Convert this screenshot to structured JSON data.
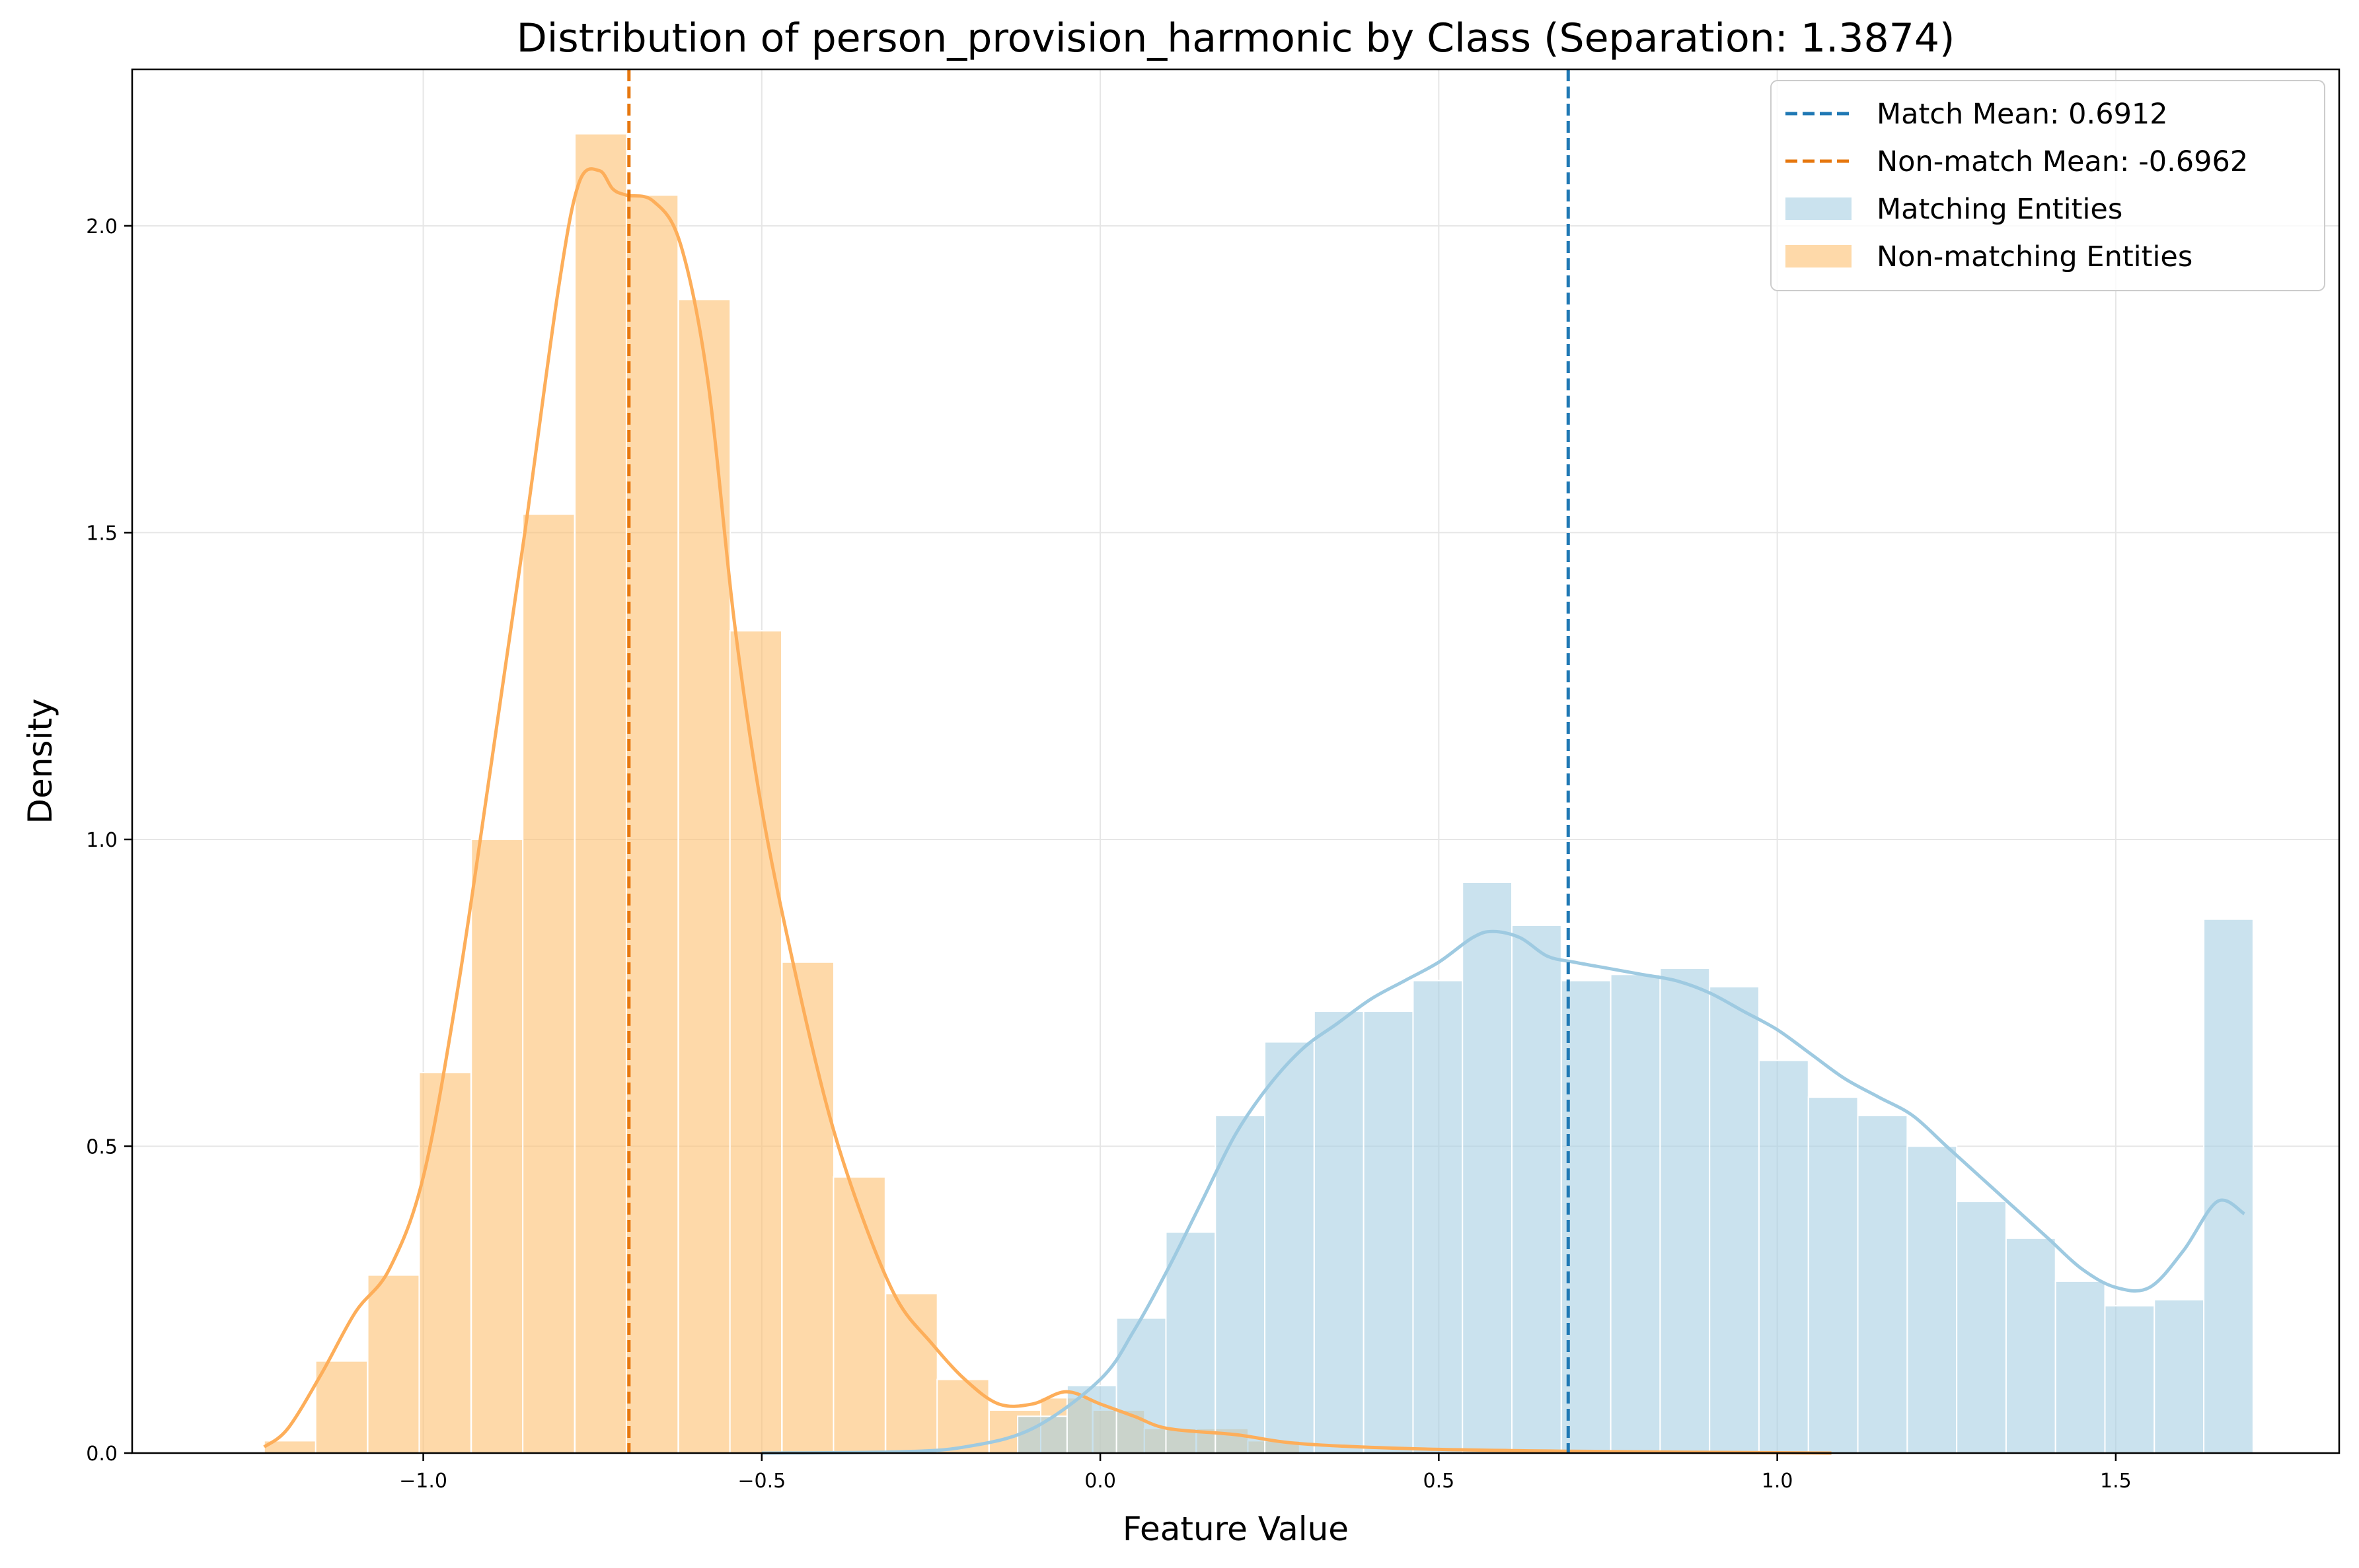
{
  "chart_data": {
    "type": "histogram",
    "title": "Distribution of person_provision_harmonic by Class (Separation: 1.3874)",
    "xlabel": "Feature Value",
    "ylabel": "Density",
    "xlim": [
      -1.43,
      1.83
    ],
    "ylim": [
      0,
      2.255
    ],
    "xticks": [
      -1.0,
      -0.5,
      0.0,
      0.5,
      1.0,
      1.5
    ],
    "xtick_labels": [
      "−1.0",
      "−0.5",
      "0.0",
      "0.5",
      "1.0",
      "1.5"
    ],
    "yticks": [
      0.0,
      0.5,
      1.0,
      1.5,
      2.0
    ],
    "ytick_labels": [
      "0.0",
      "0.5",
      "1.0",
      "1.5",
      "2.0"
    ],
    "grid": true,
    "legend_position": "top-right",
    "colors": {
      "match_bar": "#a6cee3",
      "nonmatch_bar": "#fdbf6f",
      "match_kde": "#9ecae1",
      "nonmatch_kde": "#fdae5a",
      "match_mean": "#1f78b4",
      "nonmatch_mean": "#e6770e"
    },
    "legend": [
      {
        "label": "Match Mean: 0.6912",
        "kind": "line",
        "color": "#1f78b4"
      },
      {
        "label": "Non-match Mean: -0.6962",
        "kind": "line",
        "color": "#e6770e"
      },
      {
        "label": "Matching Entities",
        "kind": "patch",
        "color": "#a6cee3"
      },
      {
        "label": "Non-matching Entities",
        "kind": "patch",
        "color": "#fdbf6f"
      }
    ],
    "mean_lines": [
      {
        "name": "Match Mean",
        "x": 0.6912,
        "color": "#1f78b4"
      },
      {
        "name": "Non-match Mean",
        "x": -0.6962,
        "color": "#e6770e"
      }
    ],
    "series": [
      {
        "name": "Non-matching Entities",
        "bin_width": 0.0765,
        "bins_left": [
          -1.235,
          -1.159,
          -1.082,
          -1.006,
          -0.929,
          -0.853,
          -0.776,
          -0.7,
          -0.623,
          -0.547,
          -0.47,
          -0.394,
          -0.317,
          -0.241,
          -0.164,
          -0.088,
          -0.011,
          0.065,
          0.142,
          0.218
        ],
        "values": [
          0.02,
          0.15,
          0.29,
          0.62,
          1.0,
          1.53,
          2.15,
          2.05,
          1.88,
          1.34,
          0.8,
          0.45,
          0.26,
          0.12,
          0.07,
          0.09,
          0.07,
          0.04,
          0.04,
          0.02
        ],
        "kde_x": [
          -1.235,
          -1.2,
          -1.15,
          -1.1,
          -1.05,
          -1.0,
          -0.95,
          -0.9,
          -0.85,
          -0.8,
          -0.77,
          -0.74,
          -0.72,
          -0.7,
          -0.66,
          -0.62,
          -0.58,
          -0.54,
          -0.5,
          -0.45,
          -0.4,
          -0.35,
          -0.3,
          -0.25,
          -0.2,
          -0.15,
          -0.1,
          -0.05,
          0.0,
          0.05,
          0.1,
          0.2,
          0.3,
          0.5,
          0.8,
          1.08
        ],
        "kde_y": [
          0.01,
          0.04,
          0.13,
          0.23,
          0.3,
          0.45,
          0.75,
          1.12,
          1.5,
          1.9,
          2.07,
          2.09,
          2.06,
          2.05,
          2.04,
          1.97,
          1.75,
          1.35,
          1.05,
          0.78,
          0.55,
          0.38,
          0.25,
          0.18,
          0.12,
          0.08,
          0.08,
          0.1,
          0.08,
          0.06,
          0.04,
          0.03,
          0.015,
          0.006,
          0.002,
          0.0
        ]
      },
      {
        "name": "Matching Entities",
        "bin_width": 0.073,
        "bins_left": [
          -0.122,
          -0.049,
          0.024,
          0.097,
          0.17,
          0.243,
          0.316,
          0.389,
          0.462,
          0.535,
          0.608,
          0.681,
          0.754,
          0.827,
          0.9,
          0.973,
          1.046,
          1.119,
          1.192,
          1.265,
          1.338,
          1.411,
          1.484,
          1.557,
          1.63
        ],
        "values": [
          0.06,
          0.11,
          0.22,
          0.36,
          0.55,
          0.67,
          0.72,
          0.72,
          0.77,
          0.93,
          0.86,
          0.77,
          0.78,
          0.79,
          0.76,
          0.64,
          0.58,
          0.55,
          0.5,
          0.41,
          0.35,
          0.28,
          0.24,
          0.25,
          0.87
        ],
        "kde_x": [
          -0.5,
          -0.3,
          -0.2,
          -0.1,
          0.0,
          0.05,
          0.1,
          0.15,
          0.2,
          0.25,
          0.3,
          0.35,
          0.4,
          0.45,
          0.5,
          0.55,
          0.58,
          0.62,
          0.66,
          0.7,
          0.75,
          0.8,
          0.85,
          0.9,
          0.95,
          1.0,
          1.05,
          1.1,
          1.15,
          1.2,
          1.25,
          1.3,
          1.35,
          1.4,
          1.45,
          1.5,
          1.55,
          1.6,
          1.65,
          1.69
        ],
        "kde_y": [
          0.0,
          0.002,
          0.01,
          0.04,
          0.12,
          0.2,
          0.3,
          0.41,
          0.52,
          0.6,
          0.66,
          0.7,
          0.74,
          0.77,
          0.8,
          0.84,
          0.85,
          0.84,
          0.81,
          0.8,
          0.79,
          0.78,
          0.77,
          0.75,
          0.72,
          0.69,
          0.65,
          0.61,
          0.58,
          0.55,
          0.5,
          0.45,
          0.4,
          0.35,
          0.3,
          0.27,
          0.27,
          0.33,
          0.41,
          0.39
        ]
      }
    ]
  }
}
